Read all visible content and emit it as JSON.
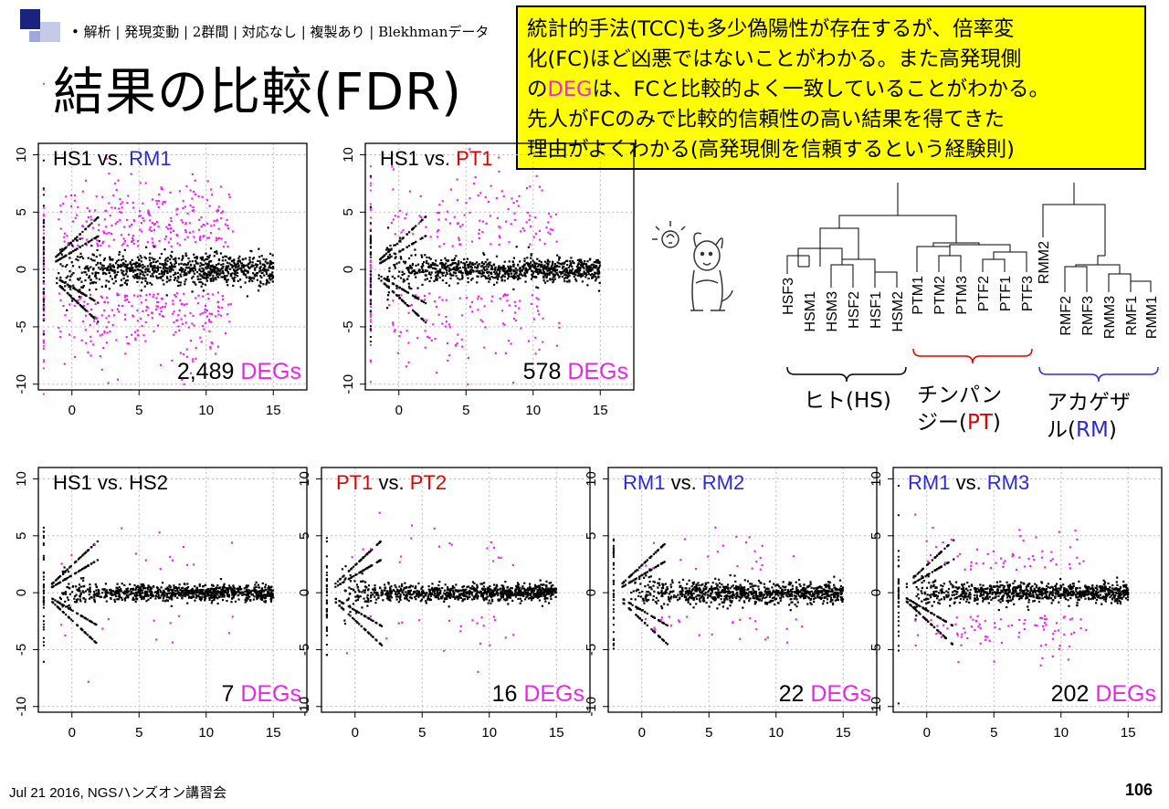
{
  "header": {
    "breadcrumb": "• 解析 | 発現変動 | 2群間 | 対応なし | 複製あり | Blekhmanデータ",
    "title": "結果の比較(FDR)"
  },
  "callout": {
    "line1": "統計的手法(TCC)も多少偽陽性が存在するが、倍率変",
    "line2": "化(FC)ほど凶悪ではないことがわかる。また高発現側",
    "line3_pre": "の",
    "line3_hl": "DEG",
    "line3_post": "は、FCと比較的よく一致していることがわかる。",
    "line4": "先人がFCのみで比較的信頼性の高い結果を得てきた",
    "line5": "理由がよくわかる(高発現側を信頼するという経験則)",
    "highlight_color": "#ee22ee"
  },
  "panels": [
    {
      "id": "p1",
      "t1": "HS1",
      "vs": " vs. ",
      "t2": "RM1",
      "c1": "black",
      "c2": "blue",
      "count": "2,489",
      "deg": "DEGs"
    },
    {
      "id": "p2",
      "t1": "HS1",
      "vs": " vs. ",
      "t2": "PT1",
      "c1": "black",
      "c2": "red",
      "count": "578",
      "deg": "DEGs"
    },
    {
      "id": "p3",
      "t1": "HS1",
      "vs": " vs. ",
      "t2": "HS2",
      "c1": "black",
      "c2": "black",
      "count": "7",
      "deg": "DEGs"
    },
    {
      "id": "p4",
      "t1": "PT1",
      "vs": " vs. ",
      "t2": "PT2",
      "c1": "red",
      "c2": "red",
      "count": "16",
      "deg": "DEGs"
    },
    {
      "id": "p5",
      "t1": "RM1",
      "vs": " vs. ",
      "t2": "RM2",
      "c1": "blue",
      "c2": "blue",
      "count": "22",
      "deg": "DEGs"
    },
    {
      "id": "p6",
      "t1": "RM1",
      "vs": " vs. ",
      "t2": "RM3",
      "c1": "blue",
      "c2": "blue",
      "count": "202",
      "deg": "DEGs"
    }
  ],
  "chart_data": [
    {
      "type": "scatter",
      "title": "HS1 vs. RM1",
      "x_ticks": [
        "0",
        "5",
        "10",
        "15"
      ],
      "y_ticks": [
        "-10",
        "-5",
        "0",
        "5",
        "10"
      ],
      "xlim": [
        -2.5,
        17.5
      ],
      "ylim": [
        -10.5,
        11
      ],
      "grid": true,
      "series": [
        {
          "name": "DEGs",
          "color": "#ee22ee",
          "count": 2489
        },
        {
          "color": "#000000"
        }
      ]
    },
    {
      "type": "scatter",
      "title": "HS1 vs. PT1",
      "x_ticks": [
        "0",
        "5",
        "10",
        "15"
      ],
      "y_ticks": [
        "-10",
        "-5",
        "0",
        "5",
        "10"
      ],
      "xlim": [
        -2.5,
        17.5
      ],
      "ylim": [
        -10.5,
        11
      ],
      "grid": true,
      "series": [
        {
          "name": "DEGs",
          "color": "#ee22ee",
          "count": 578
        },
        {
          "color": "#000000"
        }
      ]
    },
    {
      "type": "scatter",
      "title": "HS1 vs. HS2",
      "x_ticks": [
        "0",
        "5",
        "10",
        "15"
      ],
      "y_ticks": [
        "-10",
        "-5",
        "0",
        "5",
        "10"
      ],
      "xlim": [
        -2.5,
        17.5
      ],
      "ylim": [
        -10.5,
        11
      ],
      "grid": true,
      "series": [
        {
          "name": "DEGs",
          "color": "#ee22ee",
          "count": 7
        },
        {
          "color": "#000000"
        }
      ]
    },
    {
      "type": "scatter",
      "title": "PT1 vs. PT2",
      "x_ticks": [
        "0",
        "5",
        "10",
        "15"
      ],
      "y_ticks": [
        "-10",
        "-5",
        "0",
        "5",
        "10"
      ],
      "xlim": [
        -2.5,
        17.5
      ],
      "ylim": [
        -10.5,
        11
      ],
      "grid": true,
      "series": [
        {
          "name": "DEGs",
          "color": "#ee22ee",
          "count": 16
        },
        {
          "color": "#000000"
        }
      ]
    },
    {
      "type": "scatter",
      "title": "RM1 vs. RM2",
      "x_ticks": [
        "0",
        "5",
        "10",
        "15"
      ],
      "y_ticks": [
        "-10",
        "-5",
        "0",
        "5",
        "10"
      ],
      "xlim": [
        -2.5,
        17.5
      ],
      "ylim": [
        -10.5,
        11
      ],
      "grid": true,
      "series": [
        {
          "name": "DEGs",
          "color": "#ee22ee",
          "count": 22
        },
        {
          "color": "#000000"
        }
      ]
    },
    {
      "type": "scatter",
      "title": "RM1 vs. RM3",
      "x_ticks": [
        "0",
        "5",
        "10",
        "15"
      ],
      "y_ticks": [
        "-10",
        "-5",
        "0",
        "5",
        "10"
      ],
      "xlim": [
        -2.5,
        17.5
      ],
      "ylim": [
        -10.5,
        11
      ],
      "grid": true,
      "series": [
        {
          "name": "DEGs",
          "color": "#ee22ee",
          "count": 202
        },
        {
          "color": "#000000"
        }
      ]
    }
  ],
  "dendrogram": {
    "leaves": [
      "HSF3",
      "HSM1",
      "HSM3",
      "HSF2",
      "HSF1",
      "HSM2",
      "PTM1",
      "PTM2",
      "PTM3",
      "PTF2",
      "PTF1",
      "PTF3",
      "RMM2",
      "RMF2",
      "RMF3",
      "RMM3",
      "RMF1",
      "RMM1"
    ],
    "groups": [
      {
        "label_pre": "ヒト(",
        "label_code": "HS",
        "label_post": ")",
        "code_color": "#000000",
        "brace_color": "#000000"
      },
      {
        "label_pre": "チンパン",
        "label_mid": "ジー(",
        "label_code": "PT",
        "label_post": ")",
        "code_color": "#e00000",
        "brace_color": "#e00000"
      },
      {
        "label_pre": "アカゲザ",
        "label_mid": "ル(",
        "label_code": "RM",
        "label_post": ")",
        "code_color": "#2b2bd6",
        "brace_color": "#2b2bd6"
      }
    ]
  },
  "footer": {
    "left": "Jul 21 2016, NGSハンズオン講習会",
    "page": "106"
  },
  "colors": {
    "blue": "#2b2bd6",
    "red": "#e00000",
    "magenta": "#ee22ee",
    "callout_bg": "#ffff00"
  }
}
